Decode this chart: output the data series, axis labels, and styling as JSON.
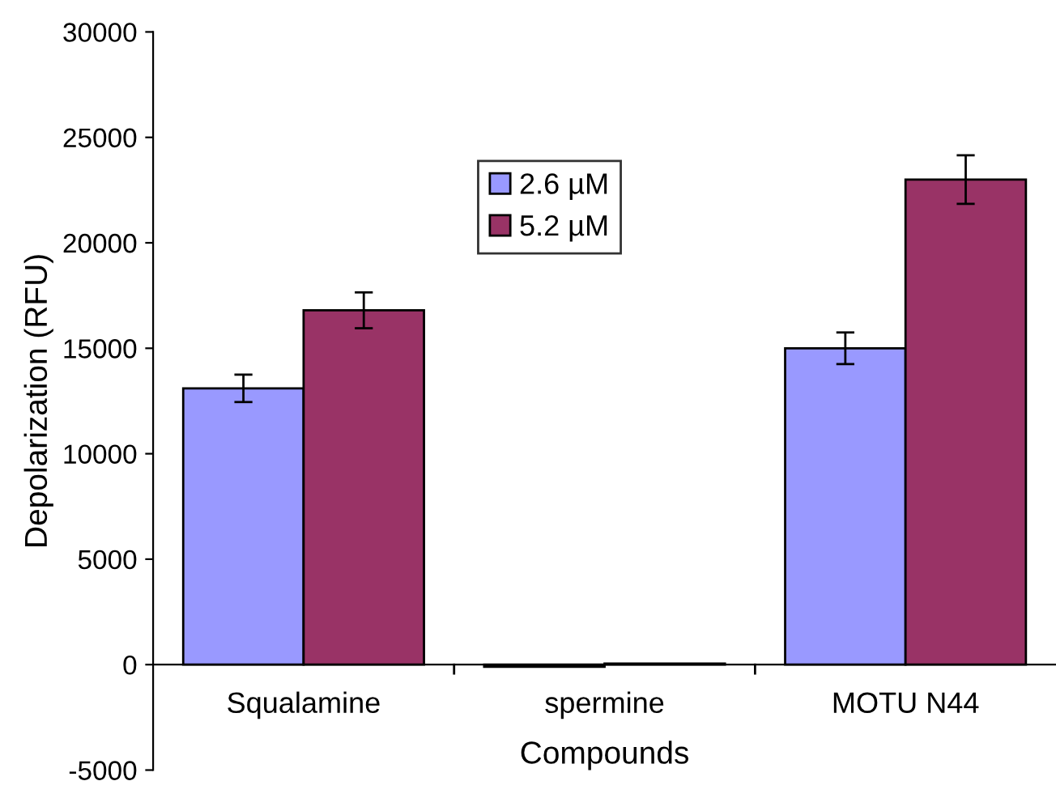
{
  "chart_data": {
    "type": "bar",
    "xlabel": "Compounds",
    "ylabel": "Depolarization (RFU)",
    "categories": [
      "Squalamine",
      "spermine",
      "MOTU N44"
    ],
    "series": [
      {
        "name": "2.6 µM",
        "color": "#9999ff",
        "values": [
          13100,
          -100,
          15000
        ],
        "errors": [
          650,
          null,
          750
        ]
      },
      {
        "name": "5.2 µM",
        "color": "#993366",
        "values": [
          16800,
          50,
          23000
        ],
        "errors": [
          850,
          null,
          1150
        ]
      }
    ],
    "ylim": [
      -5000,
      30000
    ],
    "yticks": [
      -5000,
      0,
      5000,
      10000,
      15000,
      20000,
      25000,
      30000
    ],
    "grid": false,
    "legend": "top"
  }
}
